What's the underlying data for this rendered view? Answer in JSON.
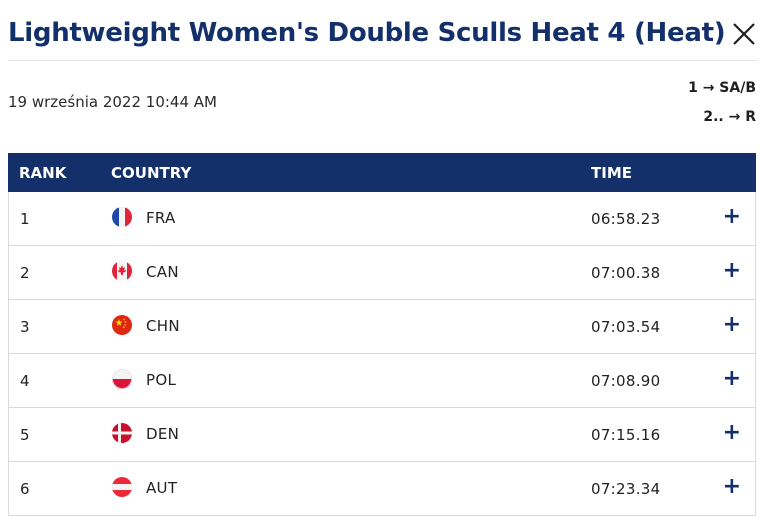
{
  "header": {
    "title": "Lightweight Women's Double Sculls Heat 4 (Heat)"
  },
  "race": {
    "date": "19 września 2022 10:44 AM",
    "progression": [
      "1 → SA/B",
      "2.. → R"
    ]
  },
  "table": {
    "columns": {
      "rank": "RANK",
      "country": "COUNTRY",
      "time": "TIME"
    },
    "rows": [
      {
        "rank": "1",
        "country": "FRA",
        "time": "06:58.23",
        "flag": "fr-flag-icon"
      },
      {
        "rank": "2",
        "country": "CAN",
        "time": "07:00.38",
        "flag": "ca-flag-icon"
      },
      {
        "rank": "3",
        "country": "CHN",
        "time": "07:03.54",
        "flag": "cn-flag-icon"
      },
      {
        "rank": "4",
        "country": "POL",
        "time": "07:08.90",
        "flag": "pl-flag-icon"
      },
      {
        "rank": "5",
        "country": "DEN",
        "time": "07:15.16",
        "flag": "dk-flag-icon"
      },
      {
        "rank": "6",
        "country": "AUT",
        "time": "07:23.34",
        "flag": "at-flag-icon"
      }
    ],
    "expand_symbol": "+"
  },
  "colors": {
    "brand": "#13306b",
    "border": "#d7dbe1"
  }
}
